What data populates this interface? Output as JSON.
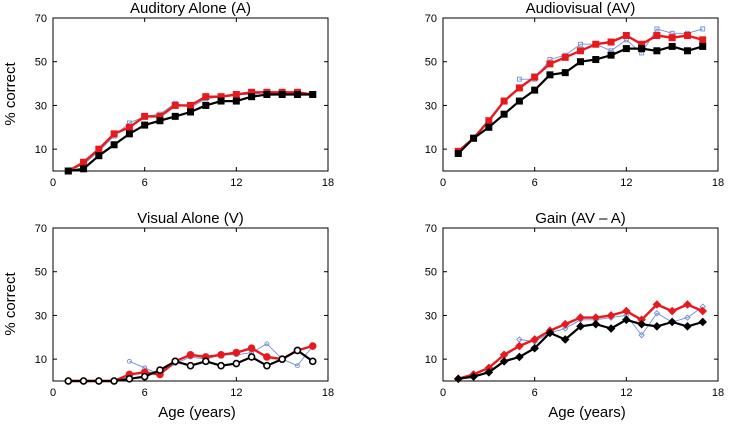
{
  "figure": {
    "ylabel": "% correct",
    "xlabel": "Age (years)",
    "colors": {
      "series_black": "#000000",
      "series_red": "#e8191c",
      "series_blue": "#6f8fd4"
    }
  },
  "chart_data": [
    {
      "type": "line",
      "title": "Auditory Alone (A)",
      "xlabel": "",
      "ylabel": "% correct",
      "xlim": [
        0,
        18
      ],
      "ylim": [
        0,
        70
      ],
      "xticks": [
        0,
        6,
        12,
        18
      ],
      "yticks": [
        10,
        30,
        50,
        70
      ],
      "marker": "square",
      "series": [
        {
          "name": "blue",
          "color": "#6f8fd4",
          "x": [
            1,
            2,
            3,
            4,
            5,
            6,
            7,
            8,
            9,
            10,
            11,
            12,
            13,
            14,
            15,
            16,
            17
          ],
          "y": [
            0,
            3,
            9,
            16,
            22,
            25,
            26,
            31,
            29,
            33,
            34,
            35,
            35,
            36,
            36,
            36,
            35
          ]
        },
        {
          "name": "red",
          "color": "#e8191c",
          "x": [
            1,
            2,
            3,
            4,
            5,
            6,
            7,
            8,
            9,
            10,
            11,
            12,
            13,
            14,
            15,
            16,
            17
          ],
          "y": [
            0,
            4,
            10,
            17,
            20,
            25,
            25,
            30,
            30,
            34,
            34,
            35,
            36,
            36,
            36,
            36,
            35
          ]
        },
        {
          "name": "black",
          "color": "#000000",
          "x": [
            1,
            2,
            3,
            4,
            5,
            6,
            7,
            8,
            9,
            10,
            11,
            12,
            13,
            14,
            15,
            16,
            17
          ],
          "y": [
            0,
            1,
            7,
            12,
            17,
            21,
            23,
            25,
            27,
            30,
            32,
            32,
            34,
            35,
            35,
            35,
            35
          ]
        }
      ]
    },
    {
      "type": "line",
      "title": "Audiovisual (AV)",
      "xlabel": "",
      "ylabel": "",
      "xlim": [
        0,
        18
      ],
      "ylim": [
        0,
        70
      ],
      "xticks": [
        0,
        6,
        12,
        18
      ],
      "yticks": [
        10,
        30,
        50,
        70
      ],
      "marker": "square",
      "series": [
        {
          "name": "blue",
          "color": "#6f8fd4",
          "x": [
            5,
            6,
            7,
            8,
            9,
            10,
            11,
            12,
            13,
            14,
            15,
            16,
            17
          ],
          "y": [
            42,
            42,
            51,
            53,
            58,
            58,
            55,
            60,
            54,
            65,
            63,
            63,
            65
          ]
        },
        {
          "name": "red",
          "color": "#e8191c",
          "x": [
            1,
            2,
            3,
            4,
            5,
            6,
            7,
            8,
            9,
            10,
            11,
            12,
            13,
            14,
            15,
            16,
            17
          ],
          "y": [
            9,
            15,
            23,
            32,
            38,
            43,
            49,
            52,
            55,
            58,
            59,
            62,
            58,
            62,
            61,
            62,
            60
          ]
        },
        {
          "name": "black",
          "color": "#000000",
          "x": [
            1,
            2,
            3,
            4,
            5,
            6,
            7,
            8,
            9,
            10,
            11,
            12,
            13,
            14,
            15,
            16,
            17
          ],
          "y": [
            8,
            15,
            20,
            26,
            32,
            37,
            44,
            45,
            50,
            51,
            53,
            56,
            56,
            55,
            57,
            55,
            57
          ]
        }
      ]
    },
    {
      "type": "line",
      "title": "Visual Alone (V)",
      "xlabel": "Age (years)",
      "ylabel": "% correct",
      "xlim": [
        0,
        18
      ],
      "ylim": [
        0,
        70
      ],
      "xticks": [
        0,
        6,
        12,
        18
      ],
      "yticks": [
        10,
        30,
        50,
        70
      ],
      "marker": "circle",
      "series": [
        {
          "name": "blue",
          "color": "#6f8fd4",
          "x": [
            5,
            6,
            7,
            8,
            9,
            10,
            11,
            12,
            13,
            14,
            15,
            16,
            17
          ],
          "y": [
            9,
            6,
            3,
            8,
            11,
            10,
            12,
            12,
            13,
            17,
            10,
            7,
            16
          ]
        },
        {
          "name": "red",
          "color": "#e8191c",
          "x": [
            1,
            2,
            3,
            4,
            5,
            6,
            7,
            8,
            9,
            10,
            11,
            12,
            13,
            14,
            15,
            16,
            17
          ],
          "y": [
            0,
            0,
            0,
            0,
            3,
            4,
            3,
            9,
            12,
            11,
            12,
            13,
            15,
            11,
            10,
            14,
            16
          ]
        },
        {
          "name": "black",
          "color": "#000000",
          "x": [
            1,
            2,
            3,
            4,
            5,
            6,
            7,
            8,
            9,
            10,
            11,
            12,
            13,
            14,
            15,
            16,
            17
          ],
          "y": [
            0,
            0,
            0,
            0,
            1,
            2,
            5,
            9,
            7,
            9,
            7,
            8,
            11,
            7,
            10,
            14,
            9
          ]
        }
      ]
    },
    {
      "type": "line",
      "title": "Gain (AV – A)",
      "xlabel": "Age (years)",
      "ylabel": "",
      "xlim": [
        0,
        18
      ],
      "ylim": [
        0,
        70
      ],
      "xticks": [
        0,
        6,
        12,
        18
      ],
      "yticks": [
        10,
        30,
        50,
        70
      ],
      "marker": "diamond",
      "series": [
        {
          "name": "blue",
          "color": "#6f8fd4",
          "x": [
            5,
            6,
            7,
            8,
            9,
            10,
            11,
            12,
            13,
            14,
            15,
            16,
            17
          ],
          "y": [
            19,
            18,
            22,
            24,
            28,
            28,
            29,
            30,
            21,
            31,
            27,
            29,
            34
          ]
        },
        {
          "name": "red",
          "color": "#e8191c",
          "x": [
            1,
            2,
            3,
            4,
            5,
            6,
            7,
            8,
            9,
            10,
            11,
            12,
            13,
            14,
            15,
            16,
            17
          ],
          "y": [
            1,
            3,
            6,
            12,
            16,
            19,
            23,
            26,
            29,
            29,
            30,
            32,
            28,
            35,
            32,
            35,
            32
          ]
        },
        {
          "name": "black",
          "color": "#000000",
          "x": [
            1,
            2,
            3,
            4,
            5,
            6,
            7,
            8,
            9,
            10,
            11,
            12,
            13,
            14,
            15,
            16,
            17
          ],
          "y": [
            1,
            2,
            4,
            9,
            11,
            15,
            22,
            19,
            25,
            26,
            24,
            28,
            26,
            25,
            27,
            25,
            27
          ]
        }
      ]
    }
  ]
}
